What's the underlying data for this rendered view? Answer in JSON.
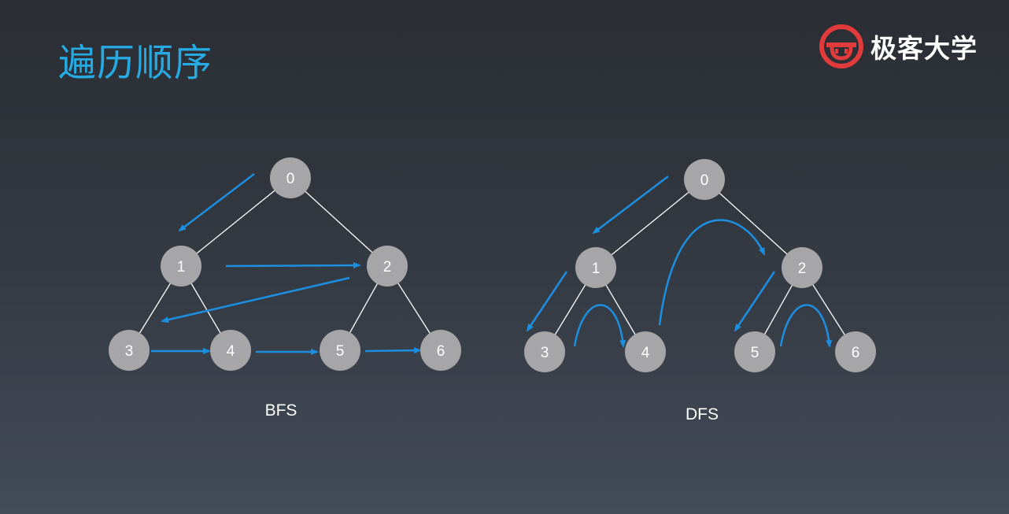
{
  "title": "遍历顺序",
  "brand": {
    "name": "极客大学",
    "logo_icon": "geekbang-logo-icon",
    "logo_color": "#e23b3b"
  },
  "colors": {
    "node": "#a6a5a7",
    "edge": "#ffffff",
    "arrow": "#1d8fe1",
    "title": "#27a9e1"
  },
  "bfs": {
    "caption": "BFS",
    "nodes": [
      {
        "id": "0",
        "label": "0"
      },
      {
        "id": "1",
        "label": "1"
      },
      {
        "id": "2",
        "label": "2"
      },
      {
        "id": "3",
        "label": "3"
      },
      {
        "id": "4",
        "label": "4"
      },
      {
        "id": "5",
        "label": "5"
      },
      {
        "id": "6",
        "label": "6"
      }
    ],
    "edges": [
      [
        "0",
        "1"
      ],
      [
        "0",
        "2"
      ],
      [
        "1",
        "3"
      ],
      [
        "1",
        "4"
      ],
      [
        "2",
        "5"
      ],
      [
        "2",
        "6"
      ]
    ],
    "traversal_order": [
      "0",
      "1",
      "2",
      "3",
      "4",
      "5",
      "6"
    ]
  },
  "dfs": {
    "caption": "DFS",
    "nodes": [
      {
        "id": "0",
        "label": "0"
      },
      {
        "id": "1",
        "label": "1"
      },
      {
        "id": "2",
        "label": "2"
      },
      {
        "id": "3",
        "label": "3"
      },
      {
        "id": "4",
        "label": "4"
      },
      {
        "id": "5",
        "label": "5"
      },
      {
        "id": "6",
        "label": "6"
      }
    ],
    "edges": [
      [
        "0",
        "1"
      ],
      [
        "0",
        "2"
      ],
      [
        "1",
        "3"
      ],
      [
        "1",
        "4"
      ],
      [
        "2",
        "5"
      ],
      [
        "2",
        "6"
      ]
    ],
    "traversal_order": [
      "0",
      "1",
      "3",
      "4",
      "2",
      "5",
      "6"
    ]
  }
}
